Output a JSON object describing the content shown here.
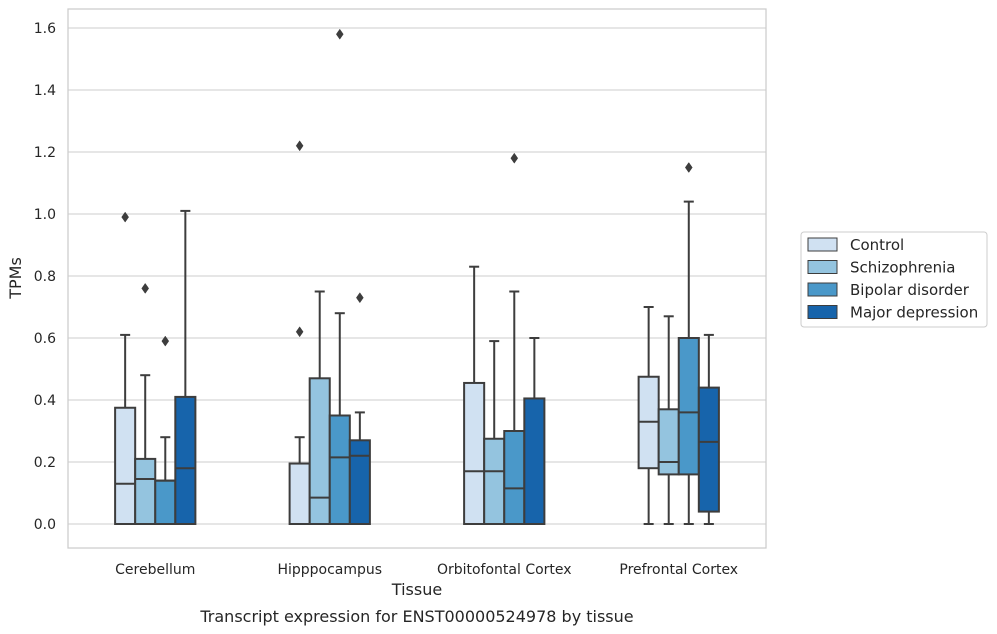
{
  "chart_data": {
    "type": "box",
    "title": "",
    "caption": "Transcript expression for ENST00000524978 by tissue",
    "xlabel": "Tissue",
    "ylabel": "TPMs",
    "ylim": [
      -0.08,
      1.66
    ],
    "yticks": [
      0.0,
      0.2,
      0.4,
      0.6,
      0.8,
      1.0,
      1.2,
      1.4,
      1.6
    ],
    "ytick_labels": [
      "0.0",
      "0.2",
      "0.4",
      "0.6",
      "0.8",
      "1.0",
      "1.2",
      "1.4",
      "1.6"
    ],
    "grid": true,
    "legend_position": "right",
    "categories": [
      "Cerebellum",
      "Hipppocampus",
      "Orbitofontal Cortex",
      "Prefrontal Cortex"
    ],
    "series": [
      {
        "name": "Control",
        "color": "#d0e1f2",
        "boxes": [
          {
            "whisker_low": 0.0,
            "q1": 0.0,
            "median": 0.13,
            "q3": 0.375,
            "whisker_high": 0.61,
            "outliers": [
              0.99
            ]
          },
          {
            "whisker_low": 0.0,
            "q1": 0.0,
            "median": 0.0,
            "q3": 0.195,
            "whisker_high": 0.28,
            "outliers": [
              0.62,
              1.22
            ]
          },
          {
            "whisker_low": 0.0,
            "q1": 0.0,
            "median": 0.17,
            "q3": 0.455,
            "whisker_high": 0.83,
            "outliers": []
          },
          {
            "whisker_low": 0.0,
            "q1": 0.18,
            "median": 0.33,
            "q3": 0.475,
            "whisker_high": 0.7,
            "outliers": []
          }
        ]
      },
      {
        "name": "Schizophrenia",
        "color": "#94c4df",
        "boxes": [
          {
            "whisker_low": 0.0,
            "q1": 0.0,
            "median": 0.145,
            "q3": 0.21,
            "whisker_high": 0.48,
            "outliers": [
              0.76
            ]
          },
          {
            "whisker_low": 0.0,
            "q1": 0.0,
            "median": 0.085,
            "q3": 0.47,
            "whisker_high": 0.75,
            "outliers": []
          },
          {
            "whisker_low": 0.0,
            "q1": 0.0,
            "median": 0.17,
            "q3": 0.275,
            "whisker_high": 0.59,
            "outliers": []
          },
          {
            "whisker_low": 0.0,
            "q1": 0.16,
            "median": 0.2,
            "q3": 0.37,
            "whisker_high": 0.67,
            "outliers": []
          }
        ]
      },
      {
        "name": "Bipolar disorder",
        "color": "#4a98c9",
        "boxes": [
          {
            "whisker_low": 0.0,
            "q1": 0.0,
            "median": 0.14,
            "q3": 0.14,
            "whisker_high": 0.28,
            "outliers": [
              0.59
            ]
          },
          {
            "whisker_low": 0.0,
            "q1": 0.0,
            "median": 0.215,
            "q3": 0.35,
            "whisker_high": 0.68,
            "outliers": [
              1.58
            ]
          },
          {
            "whisker_low": 0.0,
            "q1": 0.0,
            "median": 0.115,
            "q3": 0.3,
            "whisker_high": 0.75,
            "outliers": [
              1.18
            ]
          },
          {
            "whisker_low": 0.0,
            "q1": 0.16,
            "median": 0.36,
            "q3": 0.6,
            "whisker_high": 1.04,
            "outliers": [
              1.15
            ]
          }
        ]
      },
      {
        "name": "Major depression",
        "color": "#1764ab",
        "boxes": [
          {
            "whisker_low": 0.0,
            "q1": 0.0,
            "median": 0.18,
            "q3": 0.41,
            "whisker_high": 1.01,
            "outliers": []
          },
          {
            "whisker_low": 0.0,
            "q1": 0.0,
            "median": 0.22,
            "q3": 0.27,
            "whisker_high": 0.36,
            "outliers": [
              0.73
            ]
          },
          {
            "whisker_low": 0.0,
            "q1": 0.0,
            "median": 0.0,
            "q3": 0.405,
            "whisker_high": 0.6,
            "outliers": []
          },
          {
            "whisker_low": 0.0,
            "q1": 0.04,
            "median": 0.265,
            "q3": 0.44,
            "whisker_high": 0.61,
            "outliers": []
          }
        ]
      }
    ]
  }
}
